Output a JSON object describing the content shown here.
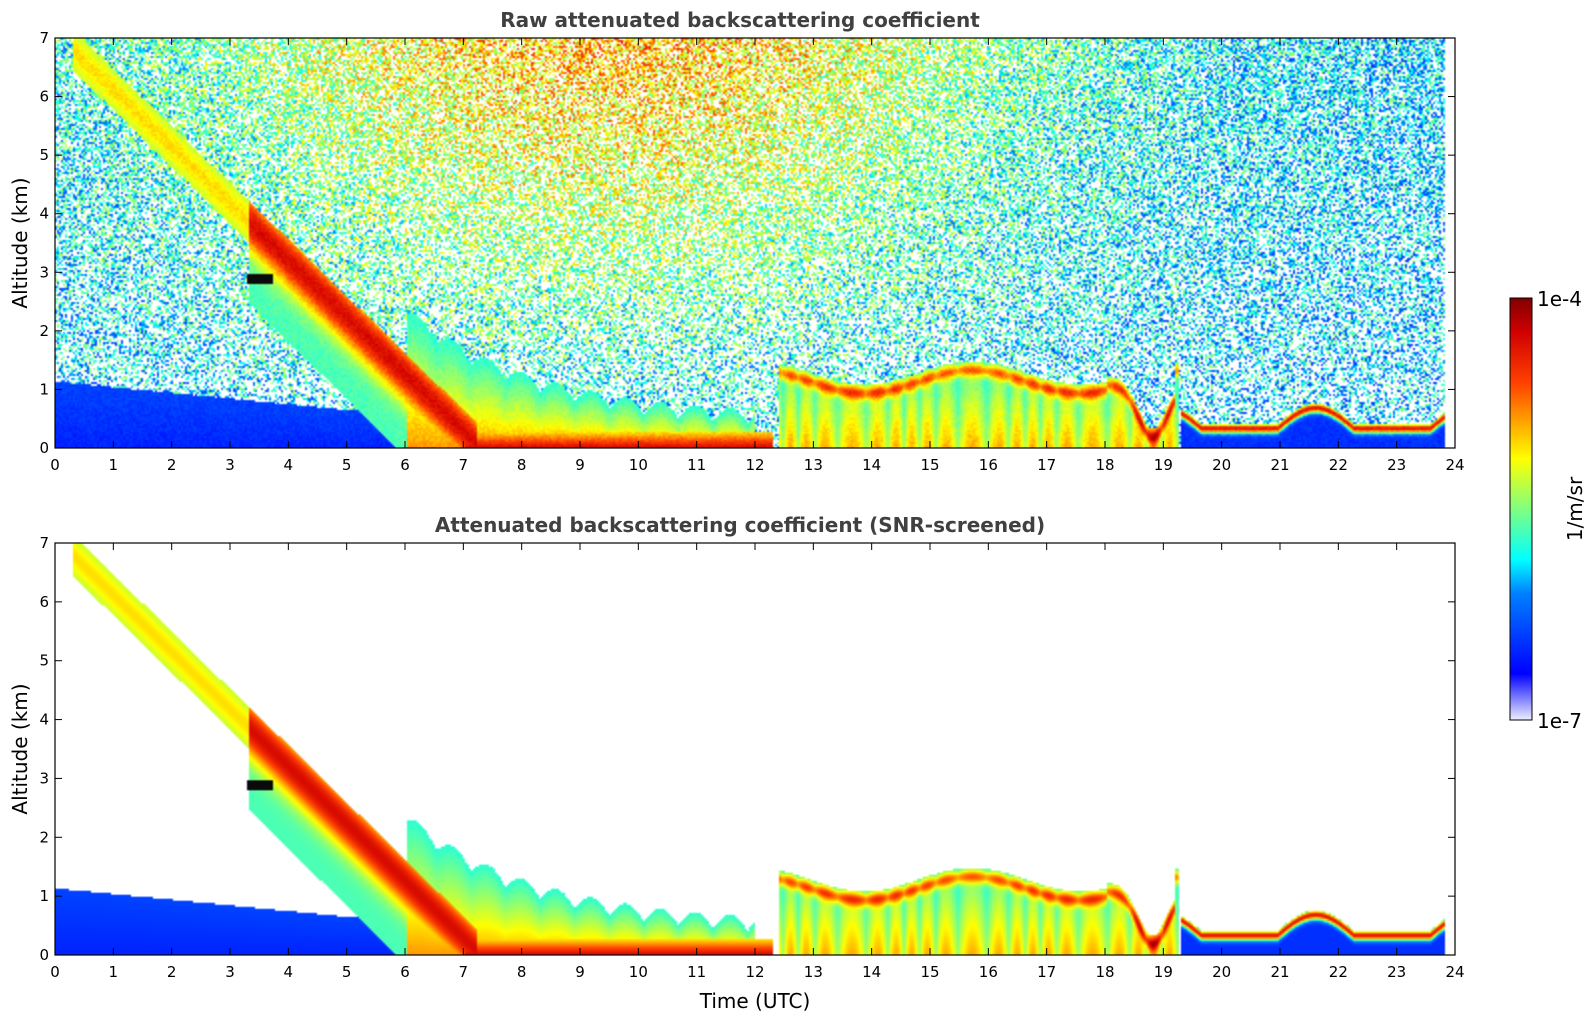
{
  "chart_data": [
    {
      "type": "heatmap",
      "title": "Raw attenuated backscattering coefficient",
      "xlabel": "",
      "ylabel": "Altitude (km)",
      "xlim": [
        0,
        24
      ],
      "ylim": [
        0,
        7
      ],
      "xticks": [
        "0",
        "1",
        "2",
        "3",
        "4",
        "5",
        "6",
        "7",
        "8",
        "9",
        "10",
        "11",
        "12",
        "13",
        "14",
        "15",
        "16",
        "17",
        "18",
        "19",
        "20",
        "21",
        "22",
        "23",
        "24"
      ],
      "yticks": [
        "0",
        "1",
        "2",
        "3",
        "4",
        "5",
        "6",
        "7"
      ],
      "screened": false,
      "features": {
        "boundary_layer": {
          "t": [
            0,
            6.2
          ],
          "top_km": [
            1.15,
            0.55
          ],
          "level": 0.18
        },
        "falling_layer": {
          "t": [
            0.3,
            7.2
          ],
          "alt_km": [
            6.8,
            0.1
          ],
          "level": 0.72
        },
        "near_ground_layer": {
          "t": [
            7,
            12
          ],
          "alt_km": 0.15,
          "level": 0.95
        },
        "cloud_layer": {
          "t": [
            12.4,
            19.2
          ],
          "alt_km": 1.15,
          "level": 0.9
        },
        "low_layer": {
          "t": [
            19.3,
            23.8
          ],
          "alt_km": 0.35,
          "level": 0.85
        },
        "black_patch": {
          "t": 3.5,
          "alt_km": 2.9
        }
      }
    },
    {
      "type": "heatmap",
      "title": "Attenuated backscattering coefficient (SNR-screened)",
      "xlabel": "Time (UTC)",
      "ylabel": "Altitude (km)",
      "xlim": [
        0,
        24
      ],
      "ylim": [
        0,
        7
      ],
      "xticks": [
        "0",
        "1",
        "2",
        "3",
        "4",
        "5",
        "6",
        "7",
        "8",
        "9",
        "10",
        "11",
        "12",
        "13",
        "14",
        "15",
        "16",
        "17",
        "18",
        "19",
        "20",
        "21",
        "22",
        "23",
        "24"
      ],
      "yticks": [
        "0",
        "1",
        "2",
        "3",
        "4",
        "5",
        "6",
        "7"
      ],
      "screened": true
    }
  ],
  "colorbar": {
    "label": "1/m/sr",
    "max_label": "1e-4",
    "min_label": "1e-7",
    "colormap": "jet",
    "scale": "log"
  }
}
